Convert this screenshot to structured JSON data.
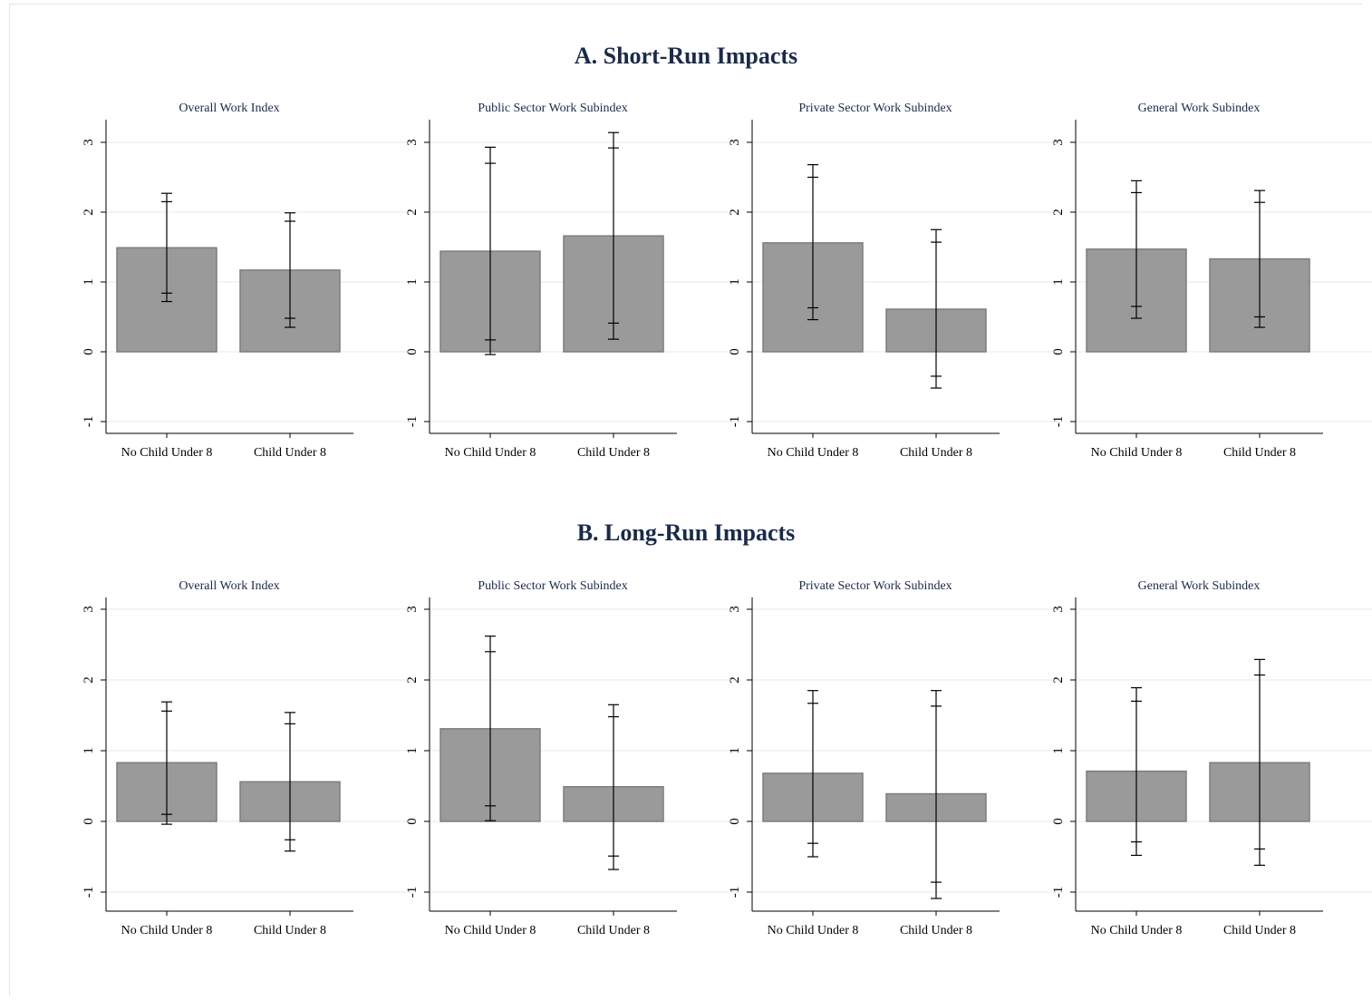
{
  "panels": [
    {
      "title": "A. Short-Run Impacts"
    },
    {
      "title": "B. Long-Run Impacts"
    }
  ],
  "chart_data": [
    {
      "type": "bar",
      "panel": "A. Short-Run Impacts",
      "title": "Overall Work Index",
      "categories": [
        "No Child Under 8",
        "Child Under 8"
      ],
      "values": [
        1.49,
        1.17
      ],
      "ci90": [
        [
          0.84,
          2.15
        ],
        [
          0.48,
          1.87
        ]
      ],
      "ci95": [
        [
          0.72,
          2.27
        ],
        [
          0.35,
          1.99
        ]
      ],
      "ylim": [
        -1.2,
        3.3
      ],
      "yticks": [
        -1,
        0,
        1,
        2,
        3
      ],
      "grid": true
    },
    {
      "type": "bar",
      "panel": "A. Short-Run Impacts",
      "title": "Public Sector Work Subindex",
      "categories": [
        "No Child Under 8",
        "Child Under 8"
      ],
      "values": [
        1.44,
        1.66
      ],
      "ci90": [
        [
          0.17,
          2.7
        ],
        [
          0.41,
          2.92
        ]
      ],
      "ci95": [
        [
          -0.04,
          2.93
        ],
        [
          0.18,
          3.14
        ]
      ],
      "ylim": [
        -1.2,
        3.3
      ],
      "yticks": [
        -1,
        0,
        1,
        2,
        3
      ],
      "grid": true
    },
    {
      "type": "bar",
      "panel": "A. Short-Run Impacts",
      "title": "Private Sector Work Subindex",
      "categories": [
        "No Child Under 8",
        "Child Under 8"
      ],
      "values": [
        1.56,
        0.61
      ],
      "ci90": [
        [
          0.63,
          2.5
        ],
        [
          -0.35,
          1.57
        ]
      ],
      "ci95": [
        [
          0.46,
          2.68
        ],
        [
          -0.52,
          1.75
        ]
      ],
      "ylim": [
        -1.2,
        3.3
      ],
      "yticks": [
        -1,
        0,
        1,
        2,
        3
      ],
      "grid": true
    },
    {
      "type": "bar",
      "panel": "A. Short-Run Impacts",
      "title": "General Work Subindex",
      "categories": [
        "No Child Under 8",
        "Child Under 8"
      ],
      "values": [
        1.47,
        1.33
      ],
      "ci90": [
        [
          0.65,
          2.28
        ],
        [
          0.5,
          2.14
        ]
      ],
      "ci95": [
        [
          0.48,
          2.45
        ],
        [
          0.35,
          2.31
        ]
      ],
      "ylim": [
        -1.2,
        3.3
      ],
      "yticks": [
        -1,
        0,
        1,
        2,
        3
      ],
      "grid": true
    },
    {
      "type": "bar",
      "panel": "B. Long-Run Impacts",
      "title": "Overall Work Index",
      "categories": [
        "No Child Under 8",
        "Child Under 8"
      ],
      "values": [
        0.83,
        0.56
      ],
      "ci90": [
        [
          0.1,
          1.56
        ],
        [
          -0.26,
          1.38
        ]
      ],
      "ci95": [
        [
          -0.04,
          1.69
        ],
        [
          -0.42,
          1.54
        ]
      ],
      "ylim": [
        -1.2,
        3.3
      ],
      "yticks": [
        -1,
        0,
        1,
        2,
        3
      ],
      "grid": true
    },
    {
      "type": "bar",
      "panel": "B. Long-Run Impacts",
      "title": "Public Sector Work Subindex",
      "categories": [
        "No Child Under 8",
        "Child Under 8"
      ],
      "values": [
        1.31,
        0.49
      ],
      "ci90": [
        [
          0.22,
          2.4
        ],
        [
          -0.49,
          1.48
        ]
      ],
      "ci95": [
        [
          0.01,
          2.62
        ],
        [
          -0.68,
          1.65
        ]
      ],
      "ylim": [
        -1.2,
        3.3
      ],
      "yticks": [
        -1,
        0,
        1,
        2,
        3
      ],
      "grid": true
    },
    {
      "type": "bar",
      "panel": "B. Long-Run Impacts",
      "title": "Private Sector Work Subindex",
      "categories": [
        "No Child Under 8",
        "Child Under 8"
      ],
      "values": [
        0.68,
        0.39
      ],
      "ci90": [
        [
          -0.31,
          1.67
        ],
        [
          -0.86,
          1.63
        ]
      ],
      "ci95": [
        [
          -0.5,
          1.85
        ],
        [
          -1.09,
          1.85
        ]
      ],
      "ylim": [
        -1.2,
        3.3
      ],
      "yticks": [
        -1,
        0,
        1,
        2,
        3
      ],
      "grid": true
    },
    {
      "type": "bar",
      "panel": "B. Long-Run Impacts",
      "title": "General Work Subindex",
      "categories": [
        "No Child Under 8",
        "Child Under 8"
      ],
      "values": [
        0.71,
        0.83
      ],
      "ci90": [
        [
          -0.29,
          1.7
        ],
        [
          -0.39,
          2.07
        ]
      ],
      "ci95": [
        [
          -0.48,
          1.89
        ],
        [
          -0.62,
          2.29
        ]
      ],
      "ylim": [
        -1.2,
        3.3
      ],
      "yticks": [
        -1,
        0,
        1,
        2,
        3
      ],
      "grid": true
    }
  ],
  "colors": {
    "bar_fill": "#9a9a9a",
    "bar_edge": "#7d7d7d",
    "axis": "#000000",
    "grid": "#eaeaea",
    "title": "#1a2a4a"
  }
}
